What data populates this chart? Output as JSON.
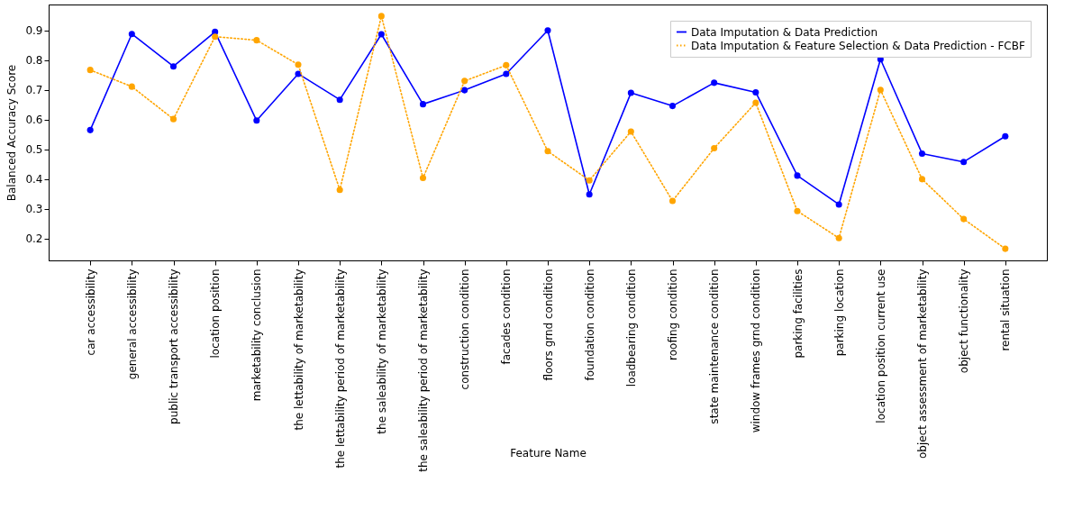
{
  "chart_data": {
    "type": "line",
    "xlabel": "Feature Name",
    "ylabel": "Balanced Accuracy Score",
    "categories": [
      "car accessibility",
      "general accessibility",
      "public transport accessibility",
      "location position",
      "marketability conclusion",
      "the lettability of marketability",
      "the lettability period of marketability",
      "the saleability of marketability",
      "the saleability period of marketability",
      "construction condition",
      "facades condition",
      "floors grnd condition",
      "foundation condition",
      "loadbearing condition",
      "roofing condition",
      "state maintenance condition",
      "window frames grnd condition",
      "parking facilities",
      "parking location",
      "location position current use",
      "object assessment of marketability",
      "object functionality",
      "rental situation"
    ],
    "series": [
      {
        "name": "Data Imputation & Data Prediction",
        "color": "#0000ff",
        "line_style": "solid",
        "values": [
          0.565,
          0.888,
          0.779,
          0.895,
          0.597,
          0.754,
          0.667,
          0.887,
          0.652,
          0.699,
          0.754,
          0.9,
          0.349,
          0.69,
          0.646,
          0.724,
          0.692,
          0.412,
          0.315,
          0.803,
          0.486,
          0.458,
          0.544
        ]
      },
      {
        "name": "Data Imputation & Feature Selection & Data Prediction - FCBF",
        "color": "#ffa500",
        "line_style": "dotted",
        "values": [
          0.767,
          0.711,
          0.602,
          0.879,
          0.867,
          0.785,
          0.364,
          0.948,
          0.404,
          0.73,
          0.783,
          0.494,
          0.396,
          0.56,
          0.327,
          0.504,
          0.657,
          0.293,
          0.202,
          0.7,
          0.4,
          0.266,
          0.166
        ]
      }
    ],
    "ylim": [
      0.127,
      0.987
    ],
    "yticks": [
      0.2,
      0.3,
      0.4,
      0.5,
      0.6,
      0.7,
      0.8,
      0.9
    ],
    "grid": false,
    "legend": "top right",
    "marker": "circle"
  }
}
